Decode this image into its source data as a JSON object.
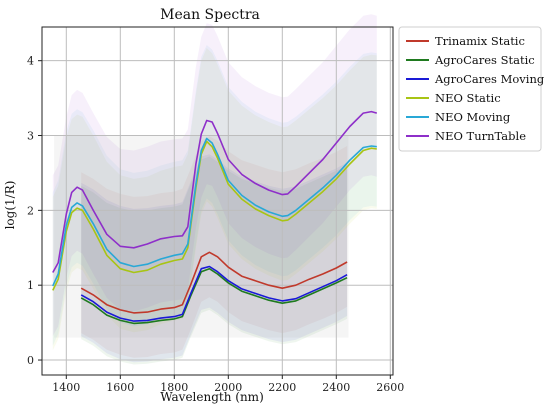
{
  "chart_data": {
    "type": "line",
    "title": "Mean Spectra",
    "xlabel": "Wavelength (nm)",
    "ylabel": "log(1/R)",
    "xlim": [
      1310,
      2610
    ],
    "ylim": [
      -0.2,
      4.45
    ],
    "xticks": [
      1400,
      1600,
      1800,
      2000,
      2200,
      2400,
      2600
    ],
    "yticks": [
      0,
      1,
      2,
      3,
      4
    ],
    "grid": true,
    "legend_position": "outside-right-top",
    "series": [
      {
        "name": "Trinamix Static",
        "color": "#c0392b",
        "x": [
          1455,
          1500,
          1550,
          1600,
          1650,
          1700,
          1750,
          1800,
          1830,
          1860,
          1900,
          1930,
          1960,
          2000,
          2050,
          2100,
          2150,
          2200,
          2250,
          2300,
          2350,
          2400,
          2440
        ],
        "y": [
          0.96,
          0.87,
          0.74,
          0.67,
          0.63,
          0.64,
          0.68,
          0.7,
          0.74,
          1.0,
          1.38,
          1.44,
          1.38,
          1.24,
          1.12,
          1.06,
          1.0,
          0.96,
          1.0,
          1.08,
          1.15,
          1.23,
          1.31
        ],
        "band": [
          0.6,
          1.55
        ]
      },
      {
        "name": "AgroCares Static",
        "color": "#1f7a1f",
        "x": [
          1455,
          1500,
          1550,
          1600,
          1650,
          1700,
          1750,
          1800,
          1830,
          1860,
          1900,
          1930,
          1960,
          2000,
          2050,
          2100,
          2150,
          2200,
          2250,
          2300,
          2350,
          2400,
          2440
        ],
        "y": [
          0.83,
          0.74,
          0.6,
          0.53,
          0.49,
          0.5,
          0.53,
          0.55,
          0.58,
          0.85,
          1.18,
          1.22,
          1.15,
          1.03,
          0.92,
          0.86,
          0.8,
          0.76,
          0.79,
          0.87,
          0.95,
          1.03,
          1.1
        ],
        "band": [
          0.55,
          1.5
        ]
      },
      {
        "name": "AgroCares Moving",
        "color": "#1a1ad6",
        "x": [
          1455,
          1500,
          1550,
          1600,
          1650,
          1700,
          1750,
          1800,
          1830,
          1860,
          1900,
          1930,
          1960,
          2000,
          2050,
          2100,
          2150,
          2200,
          2250,
          2300,
          2350,
          2400,
          2440
        ],
        "y": [
          0.87,
          0.78,
          0.64,
          0.56,
          0.52,
          0.53,
          0.56,
          0.58,
          0.61,
          0.88,
          1.22,
          1.25,
          1.18,
          1.06,
          0.95,
          0.89,
          0.83,
          0.79,
          0.82,
          0.9,
          0.98,
          1.06,
          1.14
        ],
        "band": [
          0.55,
          1.5
        ]
      },
      {
        "name": "NEO Static",
        "color": "#a8c414",
        "x": [
          1350,
          1370,
          1400,
          1420,
          1440,
          1460,
          1500,
          1550,
          1600,
          1650,
          1700,
          1750,
          1800,
          1830,
          1850,
          1880,
          1900,
          1920,
          1940,
          1960,
          2000,
          2050,
          2100,
          2150,
          2200,
          2220,
          2250,
          2300,
          2350,
          2400,
          2450,
          2500,
          2530,
          2550
        ],
        "y": [
          0.93,
          1.08,
          1.72,
          1.97,
          2.03,
          2.0,
          1.75,
          1.4,
          1.22,
          1.17,
          1.2,
          1.28,
          1.33,
          1.35,
          1.5,
          2.3,
          2.75,
          2.92,
          2.85,
          2.7,
          2.35,
          2.15,
          2.02,
          1.93,
          1.86,
          1.87,
          1.95,
          2.1,
          2.25,
          2.42,
          2.62,
          2.8,
          2.83,
          2.82
        ],
        "band": [
          0.8,
          1.25
        ]
      },
      {
        "name": "NEO Moving",
        "color": "#29a8d6",
        "x": [
          1350,
          1370,
          1400,
          1420,
          1440,
          1460,
          1500,
          1550,
          1600,
          1650,
          1700,
          1750,
          1800,
          1830,
          1850,
          1880,
          1900,
          1920,
          1940,
          1960,
          2000,
          2050,
          2100,
          2150,
          2200,
          2220,
          2250,
          2300,
          2350,
          2400,
          2450,
          2500,
          2530,
          2550
        ],
        "y": [
          0.99,
          1.15,
          1.8,
          2.04,
          2.1,
          2.06,
          1.82,
          1.48,
          1.3,
          1.25,
          1.28,
          1.35,
          1.4,
          1.42,
          1.55,
          2.35,
          2.8,
          2.96,
          2.9,
          2.75,
          2.4,
          2.2,
          2.07,
          1.98,
          1.92,
          1.93,
          2.0,
          2.15,
          2.3,
          2.47,
          2.67,
          2.84,
          2.86,
          2.85
        ],
        "band": [
          0.8,
          1.25
        ]
      },
      {
        "name": "NEO TurnTable",
        "color": "#8e2fc9",
        "x": [
          1350,
          1370,
          1400,
          1420,
          1440,
          1460,
          1500,
          1550,
          1600,
          1650,
          1700,
          1750,
          1800,
          1830,
          1850,
          1880,
          1900,
          1920,
          1940,
          1960,
          2000,
          2050,
          2100,
          2150,
          2200,
          2220,
          2250,
          2300,
          2350,
          2400,
          2450,
          2500,
          2530,
          2550
        ],
        "y": [
          1.17,
          1.3,
          1.95,
          2.24,
          2.31,
          2.27,
          2.0,
          1.68,
          1.52,
          1.5,
          1.55,
          1.62,
          1.65,
          1.66,
          1.78,
          2.62,
          3.02,
          3.2,
          3.18,
          3.03,
          2.68,
          2.48,
          2.36,
          2.27,
          2.21,
          2.22,
          2.32,
          2.5,
          2.68,
          2.9,
          3.12,
          3.3,
          3.32,
          3.3
        ],
        "band": [
          0.85,
          1.3
        ]
      }
    ]
  }
}
